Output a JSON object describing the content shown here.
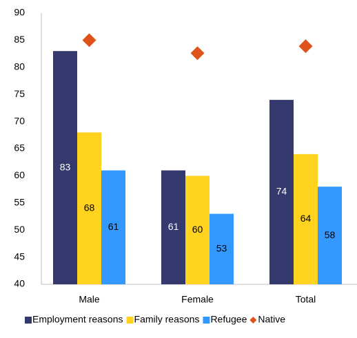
{
  "chart_data": {
    "type": "bar",
    "categories": [
      "Male",
      "Female",
      "Total"
    ],
    "series": [
      {
        "name": "Employment reasons",
        "color": "#353a6e",
        "label_color": "#ffffff",
        "values": [
          83,
          61,
          74
        ]
      },
      {
        "name": "Family reasons",
        "color": "#ffd320",
        "label_color": "#000000",
        "values": [
          68,
          60,
          64
        ]
      },
      {
        "name": "Refugee",
        "color": "#3399ff",
        "label_color": "#000000",
        "values": [
          61,
          53,
          58
        ]
      },
      {
        "name": "Native",
        "color": "#e0521b",
        "type": "scatter",
        "values": [
          85,
          82.6,
          83.9
        ]
      }
    ],
    "ylim": [
      40,
      90
    ],
    "yticks": [
      40,
      45,
      50,
      55,
      60,
      65,
      70,
      75,
      80,
      85,
      90
    ],
    "grid": false,
    "legend": "bottom"
  }
}
